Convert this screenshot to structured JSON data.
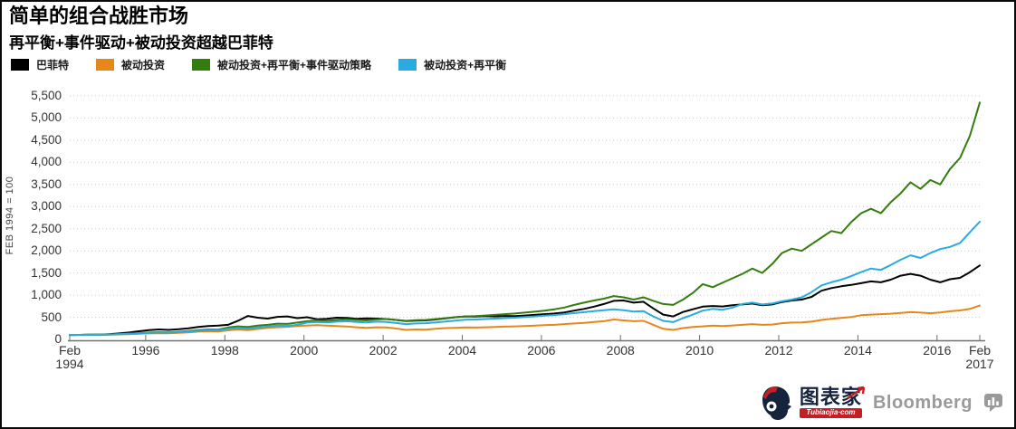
{
  "title": "简单的组合战胜市场",
  "subtitle": "再平衡+事件驱动+被动投资超越巴菲特",
  "y_axis_label": "FEB 1994 = 100",
  "legend": [
    {
      "label": "巴菲特",
      "color": "#000000"
    },
    {
      "label": "被动投资",
      "color": "#e8861a"
    },
    {
      "label": "被动投资+再平衡+事件驱动策略",
      "color": "#337d0e"
    },
    {
      "label": "被动投资+再平衡",
      "color": "#29abe2"
    }
  ],
  "footer": {
    "tubiaojia_text": "图表家",
    "tubiaojia_sub": "Tubiaojia·com",
    "bloomberg": "Bloomberg"
  },
  "chart_data": {
    "type": "line",
    "title": "简单的组合战胜市场",
    "subtitle": "再平衡+事件驱动+被动投资超越巴菲特",
    "ylabel": "FEB 1994 = 100",
    "ylim": [
      0,
      5500
    ],
    "ytick_step": 500,
    "grid": "horizontal-dotted",
    "legend_position": "top-left",
    "x_range": [
      1994.08,
      2017.08
    ],
    "x_start": 1994.08,
    "x_step": 0.25,
    "xticks": [
      {
        "pos": 1994.08,
        "label": "Feb\n1994"
      },
      {
        "pos": 1996,
        "label": "1996"
      },
      {
        "pos": 1998,
        "label": "1998"
      },
      {
        "pos": 2000,
        "label": "2000"
      },
      {
        "pos": 2002,
        "label": "2002"
      },
      {
        "pos": 2004,
        "label": "2004"
      },
      {
        "pos": 2006,
        "label": "2006"
      },
      {
        "pos": 2008,
        "label": "2008"
      },
      {
        "pos": 2010,
        "label": "2010"
      },
      {
        "pos": 2012,
        "label": "2012"
      },
      {
        "pos": 2014,
        "label": "2014"
      },
      {
        "pos": 2016,
        "label": "2016"
      },
      {
        "pos": 2017.08,
        "label": "Feb\n2017"
      }
    ],
    "series": [
      {
        "name": "巴菲特",
        "color": "#000000",
        "values": [
          100,
          103,
          108,
          106,
          118,
          135,
          155,
          185,
          210,
          225,
          215,
          230,
          250,
          280,
          300,
          310,
          330,
          420,
          530,
          490,
          470,
          510,
          520,
          480,
          500,
          455,
          465,
          490,
          485,
          465,
          475,
          470,
          460,
          440,
          415,
          425,
          430,
          450,
          475,
          500,
          520,
          515,
          525,
          520,
          530,
          525,
          540,
          555,
          570,
          585,
          610,
          650,
          690,
          740,
          800,
          870,
          880,
          830,
          850,
          700,
          560,
          520,
          620,
          680,
          740,
          755,
          745,
          770,
          790,
          810,
          770,
          790,
          845,
          880,
          900,
          960,
          1100,
          1160,
          1200,
          1230,
          1270,
          1310,
          1290,
          1350,
          1440,
          1480,
          1440,
          1350,
          1290,
          1360,
          1390,
          1520,
          1670
        ]
      },
      {
        "name": "被动投资",
        "color": "#e8861a",
        "values": [
          100,
          101,
          103,
          102,
          105,
          112,
          118,
          126,
          135,
          140,
          138,
          148,
          160,
          175,
          185,
          180,
          205,
          225,
          210,
          235,
          260,
          275,
          285,
          300,
          315,
          320,
          310,
          300,
          290,
          275,
          260,
          275,
          270,
          245,
          215,
          225,
          220,
          240,
          255,
          262,
          270,
          268,
          275,
          282,
          288,
          295,
          300,
          310,
          320,
          330,
          345,
          360,
          375,
          395,
          410,
          450,
          430,
          410,
          420,
          330,
          240,
          215,
          255,
          280,
          295,
          310,
          300,
          315,
          330,
          345,
          330,
          335,
          365,
          380,
          385,
          400,
          440,
          465,
          485,
          505,
          545,
          560,
          570,
          580,
          600,
          615,
          605,
          590,
          610,
          635,
          655,
          690,
          765
        ]
      },
      {
        "name": "被动投资+再平衡+事件驱动策略",
        "color": "#337d0e",
        "values": [
          100,
          103,
          107,
          106,
          112,
          121,
          130,
          142,
          155,
          163,
          160,
          172,
          188,
          208,
          225,
          220,
          270,
          295,
          280,
          310,
          330,
          355,
          350,
          380,
          410,
          430,
          420,
          440,
          455,
          440,
          430,
          450,
          460,
          440,
          420,
          435,
          440,
          460,
          480,
          500,
          520,
          525,
          540,
          555,
          570,
          585,
          605,
          625,
          650,
          680,
          720,
          780,
          830,
          880,
          920,
          980,
          950,
          900,
          950,
          870,
          800,
          780,
          900,
          1050,
          1250,
          1180,
          1280,
          1380,
          1480,
          1600,
          1500,
          1700,
          1950,
          2050,
          2000,
          2150,
          2300,
          2450,
          2400,
          2650,
          2850,
          2950,
          2850,
          3100,
          3300,
          3550,
          3400,
          3600,
          3500,
          3850,
          4100,
          4600,
          5350
        ]
      },
      {
        "name": "被动投资+再平衡",
        "color": "#29abe2",
        "values": [
          100,
          102,
          106,
          105,
          110,
          118,
          126,
          136,
          148,
          155,
          152,
          163,
          178,
          195,
          210,
          205,
          240,
          260,
          245,
          270,
          290,
          310,
          305,
          330,
          380,
          395,
          385,
          400,
          410,
          395,
          385,
          400,
          395,
          370,
          345,
          360,
          365,
          385,
          405,
          425,
          445,
          450,
          460,
          470,
          480,
          490,
          505,
          520,
          535,
          550,
          570,
          595,
          615,
          640,
          660,
          680,
          660,
          630,
          640,
          520,
          420,
          390,
          480,
          560,
          650,
          690,
          670,
          720,
          800,
          830,
          790,
          810,
          860,
          900,
          950,
          1070,
          1220,
          1290,
          1350,
          1430,
          1520,
          1600,
          1570,
          1680,
          1800,
          1900,
          1840,
          1950,
          2040,
          2090,
          2180,
          2420,
          2660
        ]
      }
    ]
  }
}
